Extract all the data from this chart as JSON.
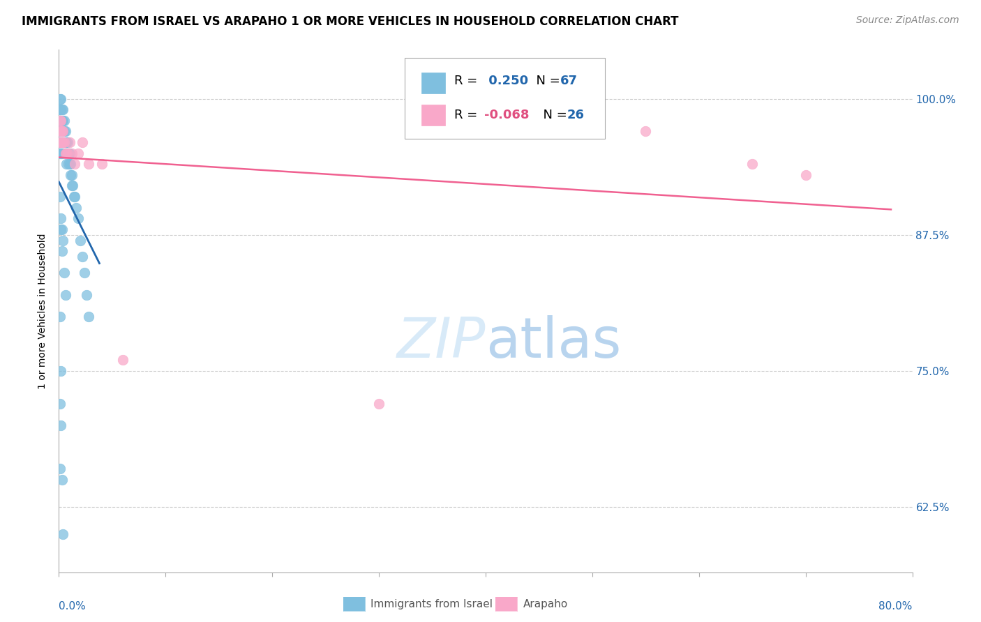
{
  "title": "IMMIGRANTS FROM ISRAEL VS ARAPAHO 1 OR MORE VEHICLES IN HOUSEHOLD CORRELATION CHART",
  "source": "Source: ZipAtlas.com",
  "ylabel": "1 or more Vehicles in Household",
  "ytick_labels": [
    "100.0%",
    "87.5%",
    "75.0%",
    "62.5%"
  ],
  "ytick_values": [
    1.0,
    0.875,
    0.75,
    0.625
  ],
  "xlim": [
    0.0,
    0.8
  ],
  "ylim": [
    0.565,
    1.045
  ],
  "color_blue": "#7fbfdf",
  "color_pink": "#f9a8c9",
  "color_line_blue": "#2166ac",
  "color_line_pink": "#f06090",
  "color_r_blue": "#2166ac",
  "color_r_pink": "#e05080",
  "color_n_blue": "#2166ac",
  "color_n_pink": "#2166ac",
  "legend_r1": "R =  0.250",
  "legend_n1": "N = 67",
  "legend_r2": "R = -0.068",
  "legend_n2": "N = 26",
  "israel_x": [
    0.001,
    0.001,
    0.001,
    0.001,
    0.001,
    0.001,
    0.001,
    0.001,
    0.002,
    0.002,
    0.002,
    0.002,
    0.002,
    0.002,
    0.003,
    0.003,
    0.003,
    0.003,
    0.003,
    0.004,
    0.004,
    0.004,
    0.004,
    0.005,
    0.005,
    0.005,
    0.006,
    0.006,
    0.006,
    0.007,
    0.007,
    0.007,
    0.008,
    0.008,
    0.009,
    0.009,
    0.01,
    0.01,
    0.011,
    0.011,
    0.012,
    0.012,
    0.013,
    0.014,
    0.015,
    0.016,
    0.018,
    0.02,
    0.022,
    0.024,
    0.026,
    0.028,
    0.003,
    0.004,
    0.005,
    0.006,
    0.001,
    0.002,
    0.002,
    0.003,
    0.001,
    0.001,
    0.001,
    0.0015,
    0.002,
    0.003,
    0.004
  ],
  "israel_y": [
    1.0,
    0.99,
    0.99,
    0.98,
    0.98,
    0.97,
    0.96,
    0.95,
    1.0,
    0.99,
    0.98,
    0.97,
    0.96,
    0.95,
    0.99,
    0.98,
    0.97,
    0.96,
    0.95,
    0.99,
    0.98,
    0.97,
    0.96,
    0.98,
    0.97,
    0.96,
    0.97,
    0.96,
    0.95,
    0.96,
    0.95,
    0.94,
    0.96,
    0.95,
    0.95,
    0.94,
    0.95,
    0.94,
    0.94,
    0.93,
    0.93,
    0.92,
    0.92,
    0.91,
    0.91,
    0.9,
    0.89,
    0.87,
    0.855,
    0.84,
    0.82,
    0.8,
    0.88,
    0.87,
    0.84,
    0.82,
    0.91,
    0.89,
    0.88,
    0.86,
    0.8,
    0.72,
    0.66,
    0.75,
    0.7,
    0.65,
    0.6
  ],
  "arapaho_x": [
    0.001,
    0.001,
    0.001,
    0.002,
    0.002,
    0.002,
    0.003,
    0.003,
    0.004,
    0.004,
    0.005,
    0.006,
    0.007,
    0.008,
    0.01,
    0.012,
    0.015,
    0.018,
    0.022,
    0.028,
    0.04,
    0.06,
    0.55,
    0.65,
    0.7,
    0.3
  ],
  "arapaho_y": [
    0.98,
    0.97,
    0.96,
    0.98,
    0.97,
    0.96,
    0.97,
    0.96,
    0.97,
    0.96,
    0.96,
    0.95,
    0.95,
    0.95,
    0.96,
    0.95,
    0.94,
    0.95,
    0.96,
    0.94,
    0.94,
    0.76,
    0.97,
    0.94,
    0.93,
    0.72
  ],
  "background_color": "#ffffff",
  "grid_color": "#cccccc",
  "watermark_color": "#d8eaf8",
  "title_fontsize": 12,
  "source_fontsize": 10,
  "tick_fontsize": 11,
  "ylabel_fontsize": 10
}
